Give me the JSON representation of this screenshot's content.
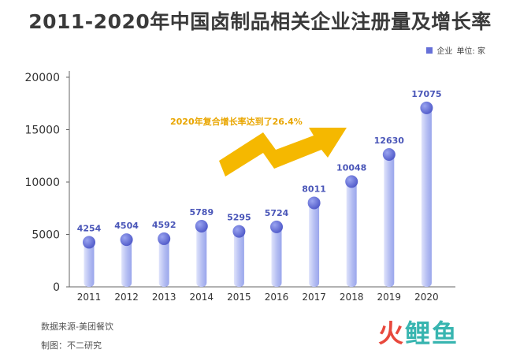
{
  "chart_data": {
    "type": "bar",
    "title": "2011-2020年中国卤制品相关企业注册量及增长率",
    "legend": {
      "label": "企业",
      "unit_label": "单位: 家",
      "color": "#6670d8",
      "placement": "top-right"
    },
    "categories": [
      "2011",
      "2012",
      "2013",
      "2014",
      "2015",
      "2016",
      "2017",
      "2018",
      "2019",
      "2020"
    ],
    "series": [
      {
        "name": "企业",
        "values": [
          4254,
          4504,
          4592,
          5789,
          5295,
          5724,
          8011,
          10048,
          12630,
          17075
        ]
      }
    ],
    "y_ticks": [
      "0",
      "5000",
      "10000",
      "15000",
      "20000"
    ],
    "ylim": [
      0,
      20000
    ],
    "grid": false,
    "annotation": "2020年复合增长率达到了26.4%"
  },
  "colors": {
    "bar_light": "#dfe3fb",
    "bar_dark": "#9aa6ec",
    "dot": "#5f6ad6",
    "label": "#4a56b8",
    "arrow": "#f5b800",
    "annotation": "#e9a600",
    "axis": "#666666"
  },
  "footer": {
    "source": "数据来源-美团餐饮",
    "maker": "制图：不二研究"
  },
  "logo": {
    "part1": "火",
    "part2": "鲤鱼"
  }
}
